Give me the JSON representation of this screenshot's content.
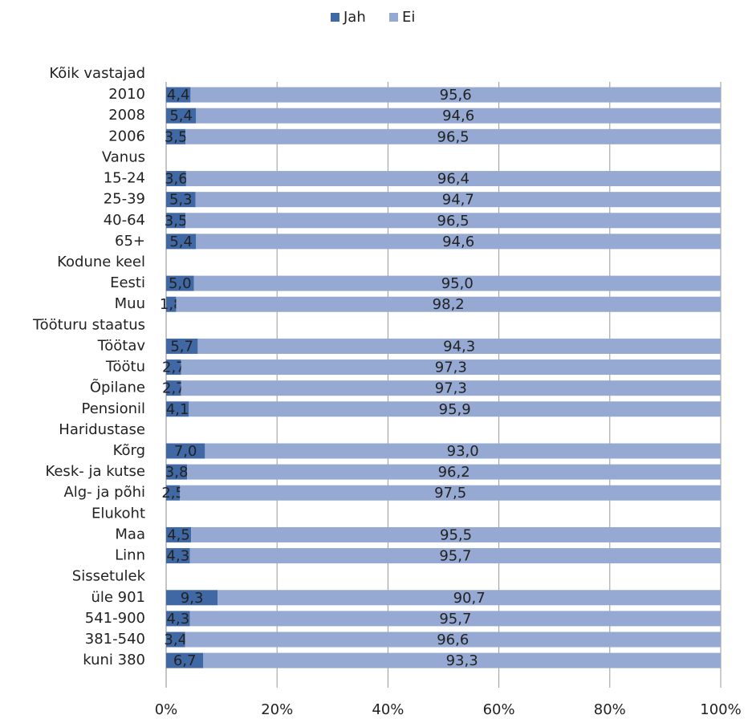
{
  "chart_data": {
    "type": "stacked_barh",
    "categories": [
      "Kõik vastajad",
      "2010",
      "2008",
      "2006",
      "Vanus",
      "15-24",
      "25-39",
      "40-64",
      "65+",
      "Kodune keel",
      "Eesti",
      "Muu",
      "Tööturu staatus",
      "Töötav",
      "Töötu",
      "Õpilane",
      "Pensionil",
      "Haridustase",
      "Kõrg",
      "Kesk- ja kutse",
      "Alg- ja põhi",
      "Elukoht",
      "Maa",
      "Linn",
      "Sissetulek",
      "üle 901",
      "541-900",
      "381-540",
      "kuni 380"
    ],
    "series": [
      {
        "name": "Jah",
        "color": "#4068a4",
        "values": [
          null,
          4.4,
          5.4,
          3.5,
          null,
          3.6,
          5.3,
          3.5,
          5.4,
          null,
          5.0,
          1.8,
          null,
          5.7,
          2.7,
          2.7,
          4.1,
          null,
          7.0,
          3.8,
          2.5,
          null,
          4.5,
          4.3,
          null,
          9.3,
          4.3,
          3.4,
          6.7
        ],
        "value_labels": [
          null,
          "4,4",
          "5,4",
          "3,5",
          null,
          "3,6",
          "5,3",
          "3,5",
          "5,4",
          null,
          "5,0",
          "1,8",
          null,
          "5,7",
          "2,7",
          "2,7",
          "4,1",
          null,
          "7,0",
          "3,8",
          "2,5",
          null,
          "4,5",
          "4,3",
          null,
          "9,3",
          "4,3",
          "3,4",
          "6,7"
        ]
      },
      {
        "name": "Ei",
        "color": "#95a9d2",
        "values": [
          null,
          95.6,
          94.6,
          96.5,
          null,
          96.4,
          94.7,
          96.5,
          94.6,
          null,
          95.0,
          98.2,
          null,
          94.3,
          97.3,
          97.3,
          95.9,
          null,
          93.0,
          96.2,
          97.5,
          null,
          95.5,
          95.7,
          null,
          90.7,
          95.7,
          96.6,
          93.3
        ],
        "value_labels": [
          null,
          "95,6",
          "94,6",
          "96,5",
          null,
          "96,4",
          "94,7",
          "96,5",
          "94,6",
          null,
          "95,0",
          "98,2",
          null,
          "94,3",
          "97,3",
          "97,3",
          "95,9",
          null,
          "93,0",
          "96,2",
          "97,5",
          null,
          "95,5",
          "95,7",
          null,
          "90,7",
          "95,7",
          "96,6",
          "93,3"
        ]
      }
    ],
    "xlim": [
      0,
      100
    ],
    "xticks": [
      {
        "value": 0,
        "label": "0%"
      },
      {
        "value": 20,
        "label": "20%"
      },
      {
        "value": 40,
        "label": "40%"
      },
      {
        "value": 60,
        "label": "60%"
      },
      {
        "value": 80,
        "label": "80%"
      },
      {
        "value": 100,
        "label": "100%"
      }
    ],
    "grid": true,
    "legend": "top"
  }
}
